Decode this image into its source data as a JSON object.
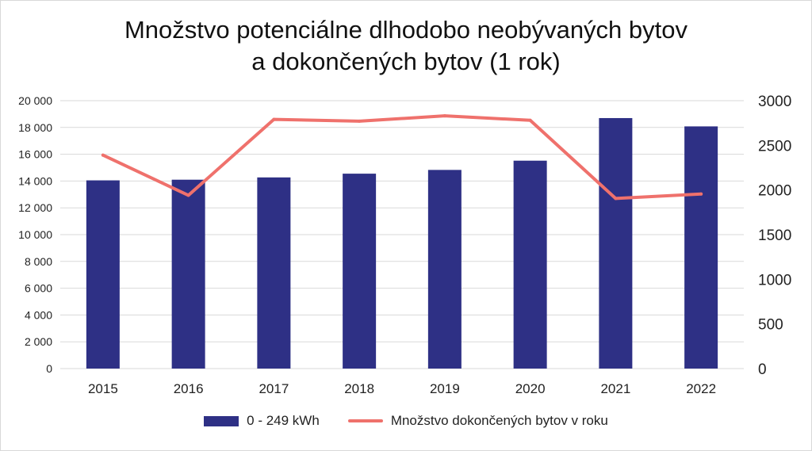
{
  "chart_data": {
    "type": "bar+line",
    "title_line1": "Množstvo potenciálne dlhodobo neobývaných bytov",
    "title_line2": "a dokončených bytov (1 rok)",
    "categories": [
      "2015",
      "2016",
      "2017",
      "2018",
      "2019",
      "2020",
      "2021",
      "2022"
    ],
    "series": [
      {
        "name": "0 - 249 kWh",
        "type": "bar",
        "axis": "left",
        "color": "#2e3085",
        "values": [
          14050,
          14100,
          14270,
          14550,
          14830,
          15520,
          18700,
          18080
        ]
      },
      {
        "name": "Množstvo dokončených bytov v roku",
        "type": "line",
        "axis": "right",
        "color": "#ef716c",
        "values": [
          2390,
          1940,
          2790,
          2770,
          2830,
          2780,
          1905,
          1955
        ]
      }
    ],
    "y_left": {
      "min": 0,
      "max": 20000,
      "ticks": [
        0,
        2000,
        4000,
        6000,
        8000,
        10000,
        12000,
        14000,
        16000,
        18000,
        20000
      ],
      "tick_labels": [
        "0",
        "2 000",
        "4 000",
        "6 000",
        "8 000",
        "10 000",
        "12 000",
        "14 000",
        "16 000",
        "18 000",
        "20 000"
      ]
    },
    "y_right": {
      "min": 0,
      "max": 3000,
      "ticks": [
        0,
        500,
        1000,
        1500,
        2000,
        2500,
        3000
      ],
      "tick_labels": [
        "0",
        "500",
        "1000",
        "1500",
        "2000",
        "2500",
        "3000"
      ]
    },
    "grid": true,
    "gridline_color": "#d9d9d9",
    "legend_position": "bottom"
  }
}
